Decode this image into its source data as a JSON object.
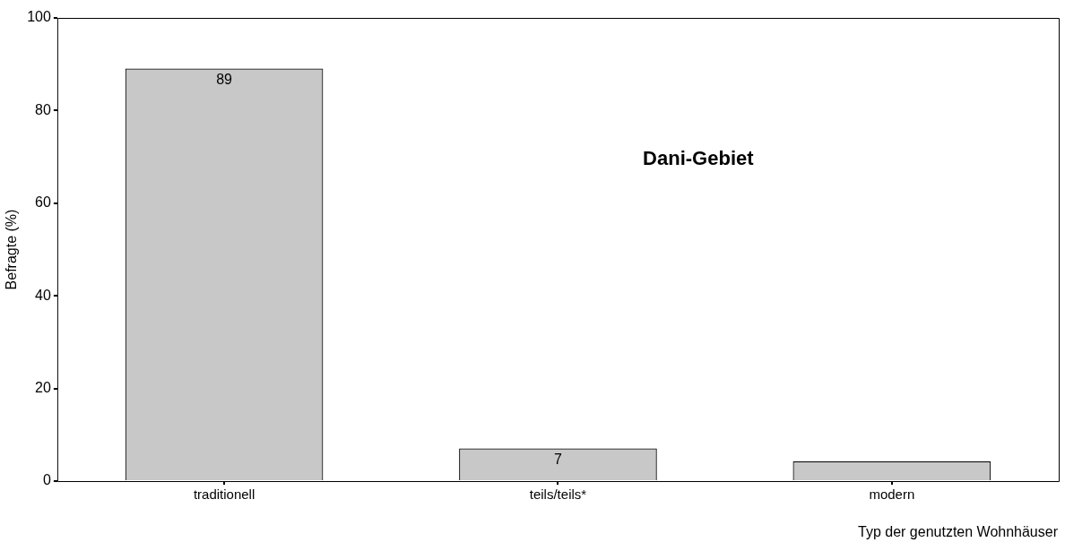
{
  "chart_data": {
    "type": "bar",
    "title": "Dani-Gebiet",
    "xlabel": "Typ der genutzten Wohnhäuser",
    "ylabel": "Befragte (%)",
    "categories": [
      "traditionell",
      "teils/teils*",
      "modern"
    ],
    "values": [
      89,
      7,
      4.2
    ],
    "value_labels": [
      "89",
      "7",
      null
    ],
    "color": "#c8c8c8",
    "ylim": [
      0,
      100
    ],
    "yticks": [
      0,
      20,
      40,
      60,
      80,
      100
    ],
    "grid": false,
    "legend": false
  }
}
